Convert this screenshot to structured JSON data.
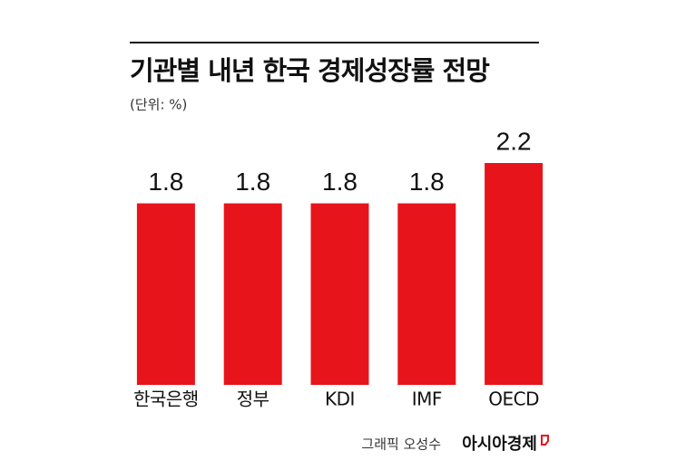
{
  "chart_data": {
    "type": "bar",
    "title": "기관별 내년 한국 경제성장률 전망",
    "subtitle": "(단위: %)",
    "categories": [
      "한국은행",
      "정부",
      "KDI",
      "IMF",
      "OECD"
    ],
    "values": [
      1.8,
      1.8,
      1.8,
      1.8,
      2.2
    ],
    "color": "#e8141c",
    "credit": "그래픽 오성수",
    "source": "아시아경제"
  }
}
